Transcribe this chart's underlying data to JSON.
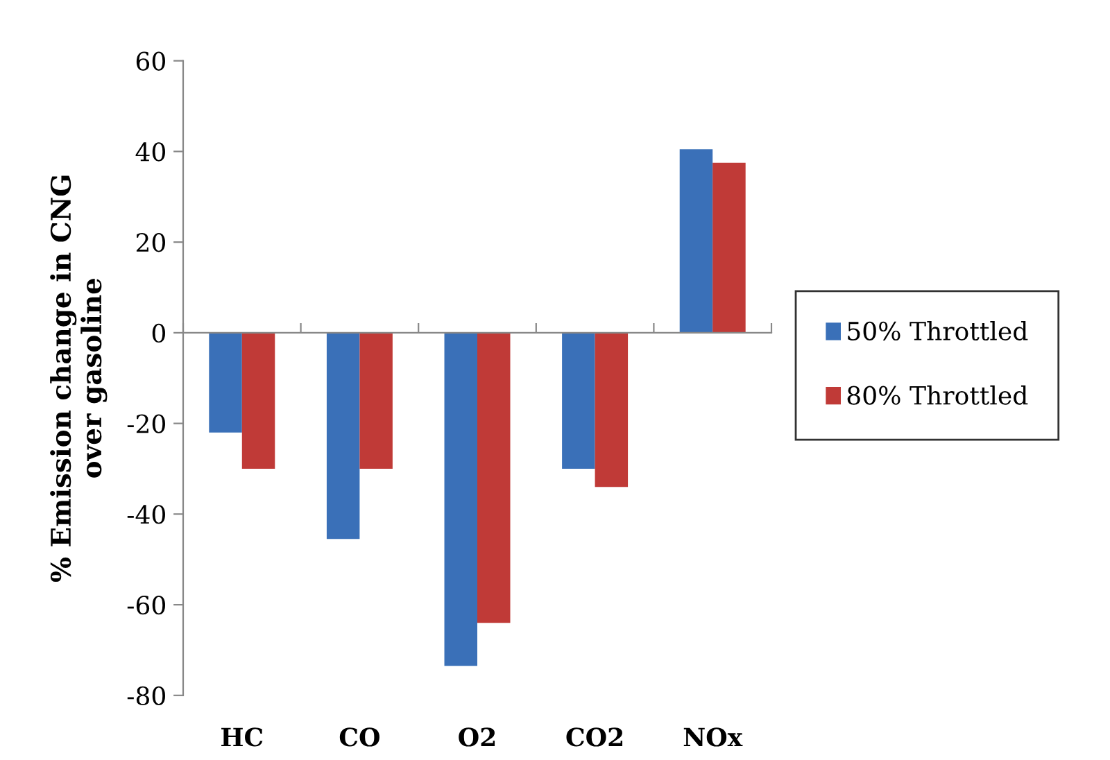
{
  "chart_data": {
    "type": "bar",
    "ylabel": "% Emission change in CNG\nover gasoline",
    "categories": [
      "HC",
      "CO",
      "O2",
      "CO2",
      "NOx"
    ],
    "series": [
      {
        "name": "50% Throttled",
        "color": "#3a70b8",
        "values": [
          -22,
          -45.5,
          -73.5,
          -30,
          40.5
        ]
      },
      {
        "name": "80% Throttled",
        "color": "#c03a37",
        "values": [
          -30,
          -30,
          -64,
          -34,
          37.5
        ]
      }
    ],
    "ylim": [
      -80,
      60
    ],
    "yticks": [
      -80,
      -60,
      -40,
      -20,
      0,
      20,
      40,
      60
    ],
    "legend": "right"
  }
}
